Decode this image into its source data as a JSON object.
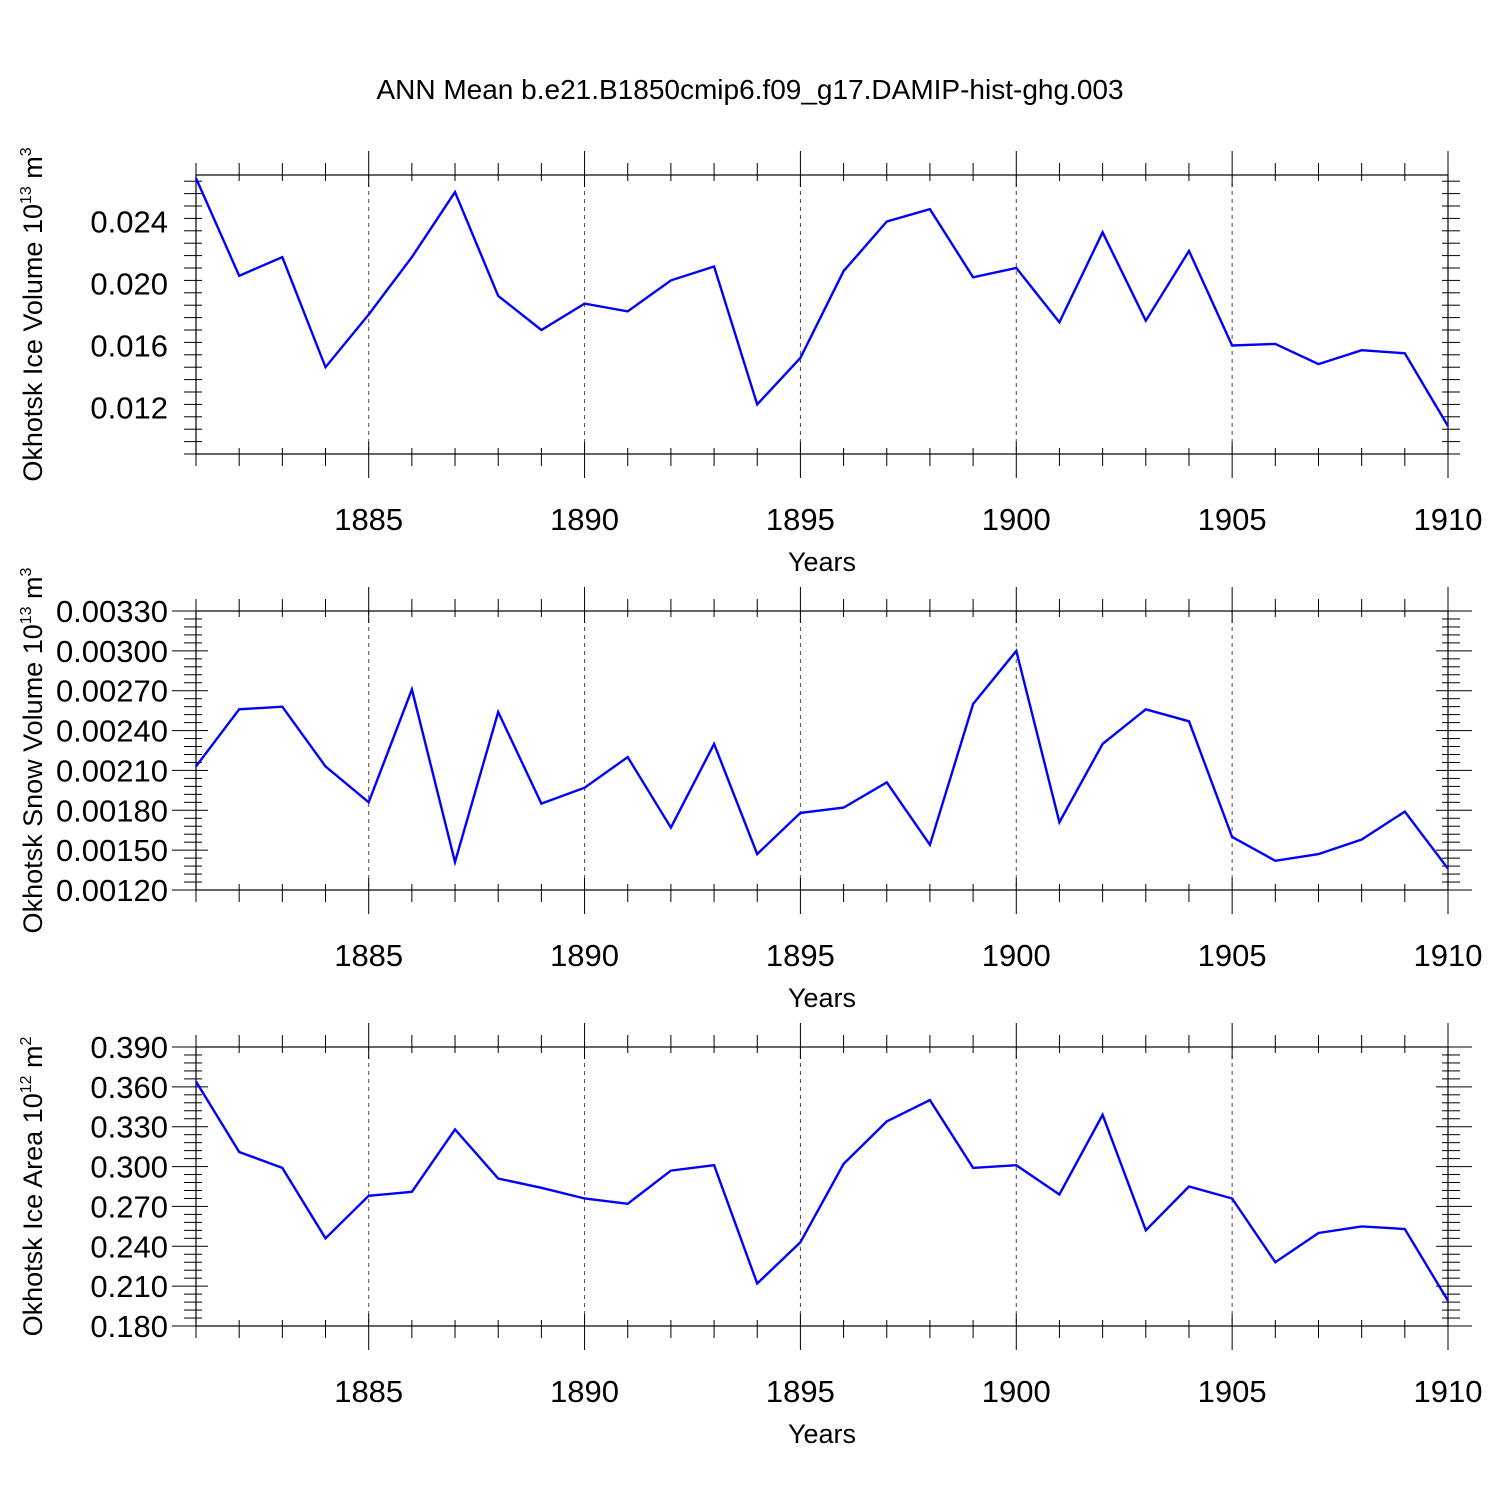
{
  "figure": {
    "title": "ANN Mean b.e21.B1850cmip6.f09_g17.DAMIP-hist-ghg.003"
  },
  "colors": {
    "series": "#0000ff",
    "axis": "#000000",
    "grid": "#000000"
  },
  "chart_data": [
    {
      "type": "line",
      "title": "",
      "xlabel": "Years",
      "ylabel": "Okhotsk Ice Volume 10",
      "ylabel_exp": "13",
      "ylabel_unit": " m",
      "ylabel_unit_exp": "3",
      "xlim": [
        1881,
        1910
      ],
      "ylim": [
        0.009,
        0.027
      ],
      "xticks": [
        1885,
        1890,
        1895,
        1900,
        1905,
        1910
      ],
      "xtick_labels": [
        "1885",
        "1890",
        "1895",
        "1900",
        "1905",
        "1910"
      ],
      "yticks": [
        0.012,
        0.016,
        0.02,
        0.024
      ],
      "ytick_labels": [
        "0.012",
        "0.016",
        "0.020",
        "0.024"
      ],
      "grid": "vertical dashed at major x ticks",
      "series": [
        {
          "x": [
            1881,
            1882,
            1883,
            1884,
            1885,
            1886,
            1887,
            1888,
            1889,
            1890,
            1891,
            1892,
            1893,
            1894,
            1895,
            1896,
            1897,
            1898,
            1899,
            1900,
            1901,
            1902,
            1903,
            1904,
            1905,
            1906,
            1907,
            1908,
            1909,
            1910
          ],
          "values": [
            0.0268,
            0.0205,
            0.0217,
            0.0146,
            0.018,
            0.0217,
            0.0259,
            0.0192,
            0.017,
            0.0187,
            0.0182,
            0.0202,
            0.0211,
            0.0122,
            0.0152,
            0.0208,
            0.024,
            0.0248,
            0.0204,
            0.021,
            0.0175,
            0.0233,
            0.0176,
            0.0221,
            0.016,
            0.0161,
            0.0148,
            0.0157,
            0.0155,
            0.0108
          ]
        }
      ]
    },
    {
      "type": "line",
      "title": "",
      "xlabel": "Years",
      "ylabel": "Okhotsk Snow Volume 10",
      "ylabel_exp": "13",
      "ylabel_unit": " m",
      "ylabel_unit_exp": "3",
      "xlim": [
        1881,
        1910
      ],
      "ylim": [
        0.0012,
        0.0033
      ],
      "xticks": [
        1885,
        1890,
        1895,
        1900,
        1905,
        1910
      ],
      "xtick_labels": [
        "1885",
        "1890",
        "1895",
        "1900",
        "1905",
        "1910"
      ],
      "yticks": [
        0.0012,
        0.0015,
        0.0018,
        0.0021,
        0.0024,
        0.0027,
        0.003,
        0.0033
      ],
      "ytick_labels": [
        "0.00120",
        "0.00150",
        "0.00180",
        "0.00210",
        "0.00240",
        "0.00270",
        "0.00300",
        "0.00330"
      ],
      "grid": "vertical dashed at major x ticks",
      "series": [
        {
          "x": [
            1881,
            1882,
            1883,
            1884,
            1885,
            1886,
            1887,
            1888,
            1889,
            1890,
            1891,
            1892,
            1893,
            1894,
            1895,
            1896,
            1897,
            1898,
            1899,
            1900,
            1901,
            1902,
            1903,
            1904,
            1905,
            1906,
            1907,
            1908,
            1909,
            1910
          ],
          "values": [
            0.00213,
            0.00256,
            0.00258,
            0.00213,
            0.00186,
            0.00271,
            0.00141,
            0.00254,
            0.00185,
            0.00197,
            0.0022,
            0.00167,
            0.0023,
            0.00147,
            0.00178,
            0.00182,
            0.00201,
            0.00154,
            0.0026,
            0.003,
            0.00171,
            0.0023,
            0.00256,
            0.00247,
            0.0016,
            0.00142,
            0.00147,
            0.00158,
            0.00179,
            0.00136
          ]
        }
      ]
    },
    {
      "type": "line",
      "title": "",
      "xlabel": "Years",
      "ylabel": "Okhotsk Ice Area 10",
      "ylabel_exp": "12",
      "ylabel_unit": " m",
      "ylabel_unit_exp": "2",
      "xlim": [
        1881,
        1910
      ],
      "ylim": [
        0.18,
        0.39
      ],
      "xticks": [
        1885,
        1890,
        1895,
        1900,
        1905,
        1910
      ],
      "xtick_labels": [
        "1885",
        "1890",
        "1895",
        "1900",
        "1905",
        "1910"
      ],
      "yticks": [
        0.18,
        0.21,
        0.24,
        0.27,
        0.3,
        0.33,
        0.36,
        0.39
      ],
      "ytick_labels": [
        "0.180",
        "0.210",
        "0.240",
        "0.270",
        "0.300",
        "0.330",
        "0.360",
        "0.390"
      ],
      "grid": "vertical dashed at major x ticks",
      "series": [
        {
          "x": [
            1881,
            1882,
            1883,
            1884,
            1885,
            1886,
            1887,
            1888,
            1889,
            1890,
            1891,
            1892,
            1893,
            1894,
            1895,
            1896,
            1897,
            1898,
            1899,
            1900,
            1901,
            1902,
            1903,
            1904,
            1905,
            1906,
            1907,
            1908,
            1909,
            1910
          ],
          "values": [
            0.364,
            0.311,
            0.299,
            0.246,
            0.278,
            0.281,
            0.328,
            0.291,
            0.284,
            0.276,
            0.272,
            0.297,
            0.301,
            0.212,
            0.243,
            0.302,
            0.334,
            0.35,
            0.299,
            0.301,
            0.279,
            0.339,
            0.252,
            0.285,
            0.276,
            0.228,
            0.25,
            0.255,
            0.253,
            0.199
          ]
        }
      ]
    }
  ]
}
